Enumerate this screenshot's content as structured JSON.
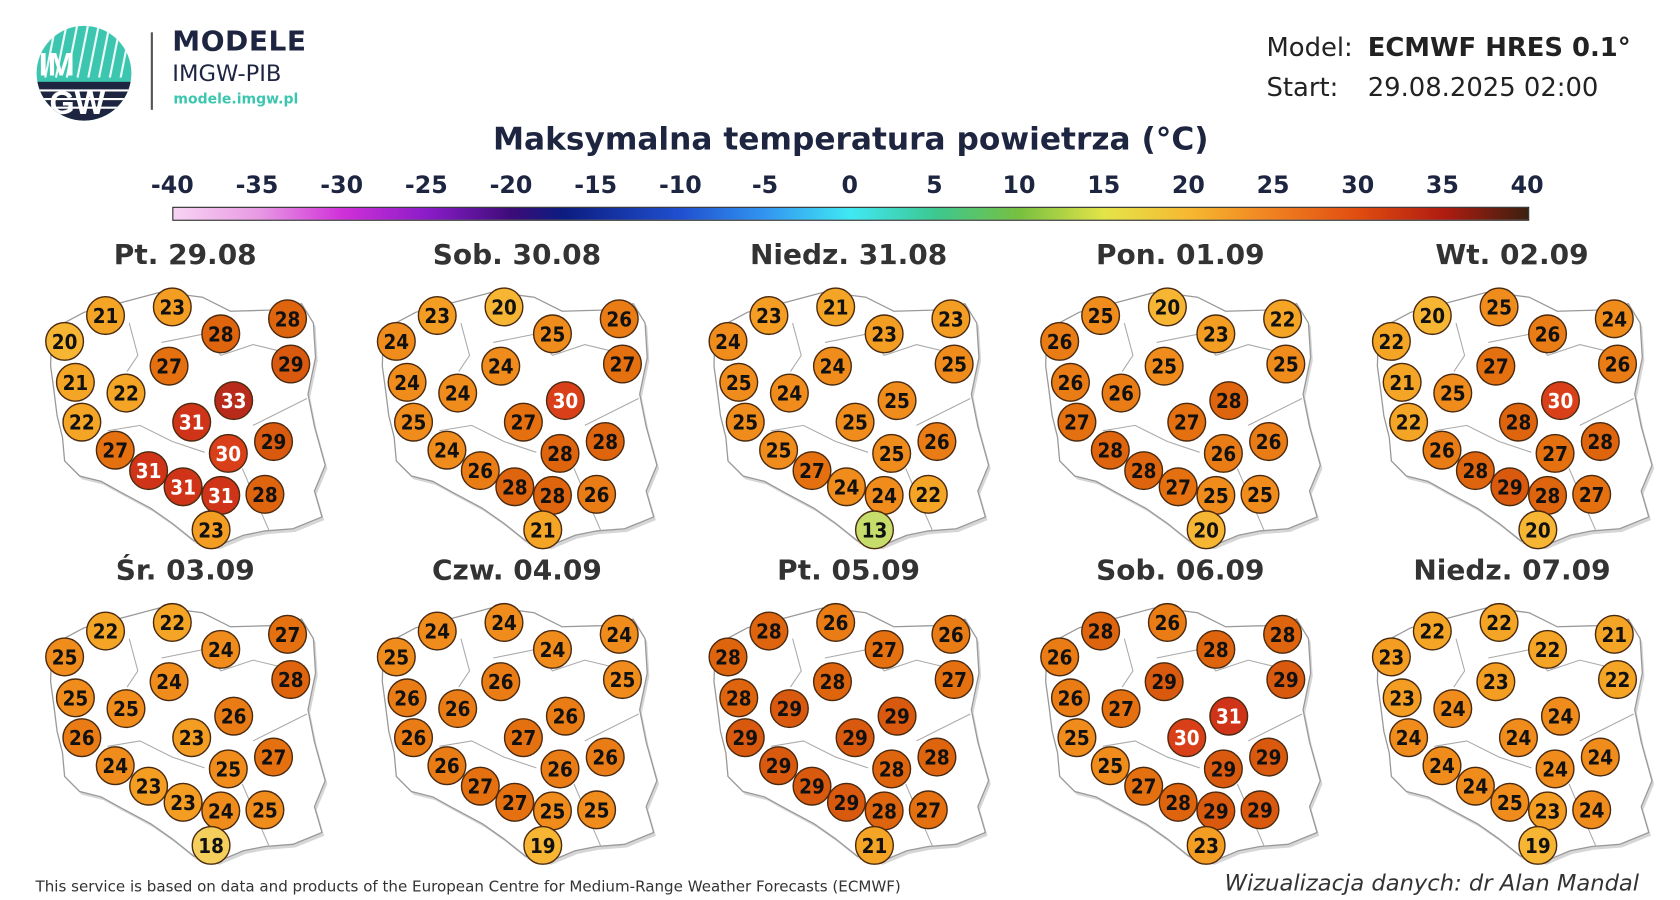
{
  "header": {
    "logo_text": "IMGW",
    "brand_title": "MODELE",
    "brand_subtitle": "IMGW-PIB",
    "brand_url": "modele.imgw.pl",
    "model_label": "Model:",
    "model_value": "ECMWF HRES 0.1°",
    "start_label": "Start:",
    "start_value": "29.08.2025 02:00"
  },
  "colors": {
    "brand_navy": "#1d2540",
    "brand_teal": "#3cc6b0"
  },
  "chart_data": {
    "type": "map",
    "title": "Maksymalna temperatura powietrza (°C)",
    "colorbar": {
      "ticks": [
        "-40",
        "-35",
        "-30",
        "-25",
        "-20",
        "-15",
        "-10",
        "-5",
        "0",
        "5",
        "10",
        "15",
        "20",
        "25",
        "30",
        "35",
        "40"
      ],
      "range": [
        -40,
        40
      ]
    },
    "days": [
      {
        "label": "Pt. 29.08",
        "values": [
          20,
          21,
          23,
          28,
          28,
          29,
          27,
          22,
          21,
          22,
          31,
          33,
          30,
          29,
          27,
          31,
          31,
          31,
          28,
          23
        ]
      },
      {
        "label": "Sob. 30.08",
        "values": [
          24,
          23,
          20,
          25,
          26,
          27,
          24,
          24,
          24,
          25,
          27,
          30,
          28,
          28,
          24,
          26,
          28,
          28,
          26,
          21
        ]
      },
      {
        "label": "Niedz. 31.08",
        "values": [
          24,
          23,
          21,
          23,
          23,
          25,
          24,
          24,
          25,
          25,
          25,
          25,
          25,
          26,
          25,
          27,
          24,
          24,
          22,
          13
        ]
      },
      {
        "label": "Pon. 01.09",
        "values": [
          26,
          25,
          20,
          23,
          22,
          25,
          25,
          26,
          26,
          27,
          27,
          28,
          26,
          26,
          28,
          28,
          27,
          25,
          25,
          20
        ]
      },
      {
        "label": "Wt. 02.09",
        "values": [
          22,
          20,
          25,
          26,
          24,
          26,
          27,
          25,
          21,
          22,
          28,
          30,
          27,
          28,
          26,
          28,
          29,
          28,
          27,
          20
        ]
      },
      {
        "label": "Śr. 03.09",
        "values": [
          25,
          22,
          22,
          24,
          27,
          28,
          24,
          25,
          25,
          26,
          23,
          26,
          25,
          27,
          24,
          23,
          23,
          24,
          25,
          18
        ]
      },
      {
        "label": "Czw. 04.09",
        "values": [
          25,
          24,
          24,
          24,
          24,
          25,
          26,
          26,
          26,
          26,
          27,
          26,
          26,
          26,
          26,
          27,
          27,
          25,
          25,
          19
        ]
      },
      {
        "label": "Pt. 05.09",
        "values": [
          28,
          28,
          26,
          27,
          26,
          27,
          28,
          29,
          28,
          29,
          29,
          29,
          28,
          28,
          29,
          29,
          29,
          28,
          27,
          21
        ]
      },
      {
        "label": "Sob. 06.09",
        "values": [
          26,
          28,
          26,
          28,
          28,
          29,
          29,
          27,
          26,
          25,
          30,
          31,
          29,
          29,
          25,
          27,
          28,
          29,
          29,
          23
        ]
      },
      {
        "label": "Niedz. 07.09",
        "values": [
          23,
          22,
          22,
          22,
          21,
          22,
          23,
          24,
          23,
          24,
          24,
          24,
          24,
          24,
          24,
          24,
          25,
          23,
          24,
          19
        ]
      }
    ]
  },
  "footer": {
    "source": "This service is based on data and products of the European Centre for Medium-Range Weather Forecasts (ECMWF)",
    "credit": "Wizualizacja danych: dr Alan Mandal"
  }
}
